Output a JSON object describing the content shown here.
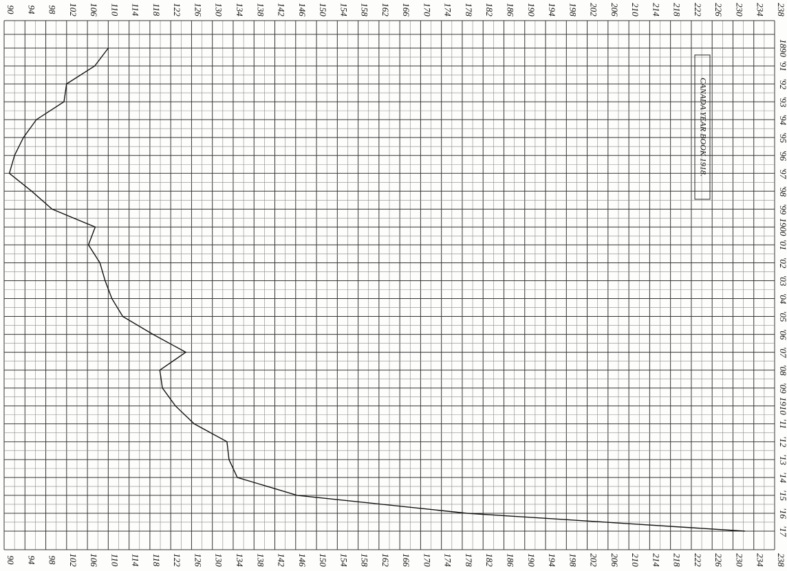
{
  "chart_data": {
    "type": "line",
    "orientation": "horizontal",
    "annotation": "CANADA YEAR BOOK 1918.",
    "categories": [
      "1890",
      "'91",
      "'92",
      "'93",
      "'94",
      "'95",
      "'96",
      "'97",
      "'98",
      "'99",
      "1900",
      "'01",
      "'02",
      "'03",
      "'04",
      "'05",
      "'06",
      "'07",
      "'08",
      "'09",
      "1910",
      "'11",
      "'12",
      "'13",
      "'14",
      "'15",
      "'16",
      "'17"
    ],
    "values": [
      110,
      107.4,
      102,
      101.5,
      96.2,
      93.7,
      92,
      91,
      95.3,
      99.2,
      107.5,
      106.2,
      108.4,
      109.4,
      110.7,
      112.8,
      118.6,
      124.9,
      119.9,
      120.4,
      122.9,
      126.5,
      132.8,
      133.2,
      134.8,
      146.3,
      178.9,
      232.3
    ],
    "color": "#111111",
    "xlim": [
      90,
      238
    ],
    "xticks": [
      90,
      94,
      98,
      102,
      106,
      110,
      114,
      118,
      122,
      126,
      130,
      134,
      138,
      142,
      146,
      150,
      154,
      158,
      162,
      166,
      170,
      174,
      178,
      182,
      186,
      190,
      194,
      198,
      202,
      206,
      210,
      214,
      218,
      222,
      226,
      230,
      234,
      238
    ],
    "grid": true
  }
}
